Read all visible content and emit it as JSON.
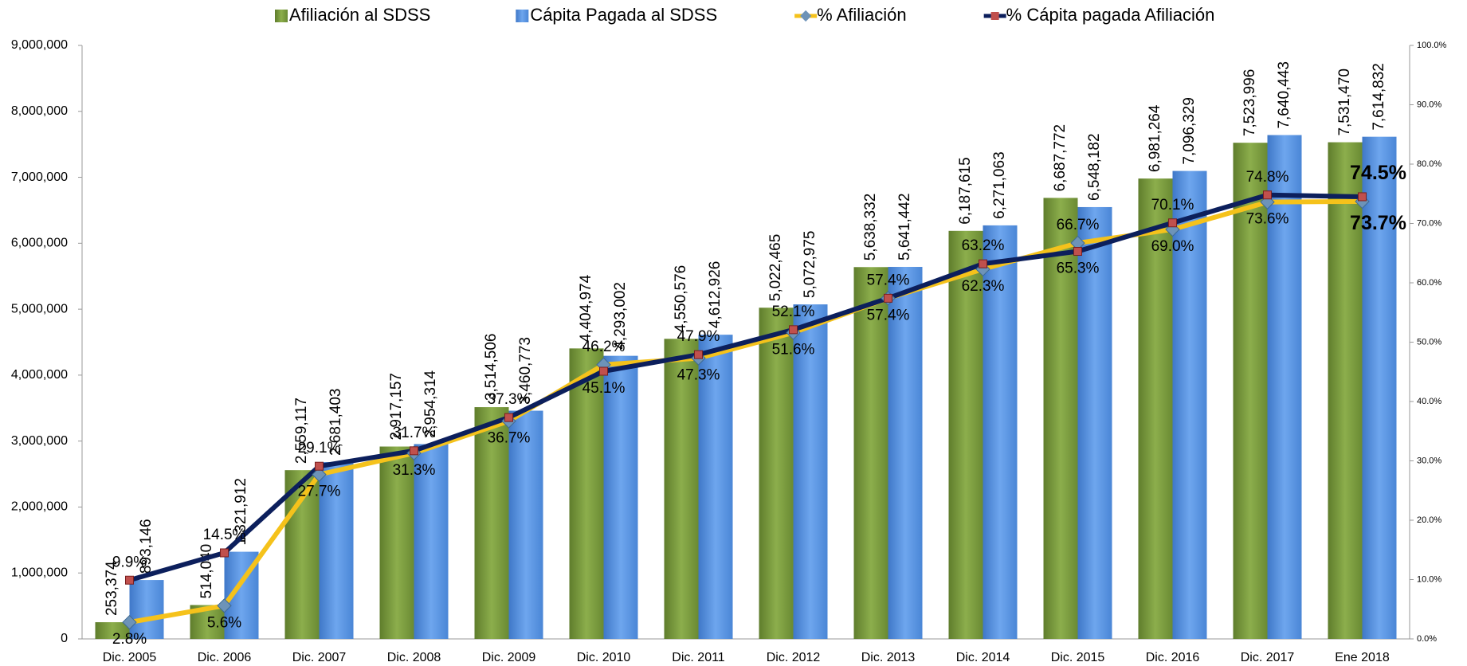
{
  "chart_data": {
    "type": "bar_line",
    "categories": [
      "Dic. 2005",
      "Dic. 2006",
      "Dic. 2007",
      "Dic. 2008",
      "Dic. 2009",
      "Dic. 2010",
      "Dic. 2011",
      "Dic. 2012",
      "Dic. 2013",
      "Dic. 2014",
      "Dic. 2015",
      "Dic. 2016",
      "Dic. 2017",
      "Ene 2018"
    ],
    "series": [
      {
        "name": "Afiliación al SDSS",
        "type": "bar",
        "color": "#7b9c3f",
        "values": [
          253374,
          514040,
          2559117,
          2917157,
          3514506,
          4404974,
          4550576,
          5022465,
          5638332,
          6187615,
          6687772,
          6981264,
          7523996,
          7531470
        ],
        "value_labels": [
          "253,374",
          "514,040",
          "2,559,117",
          "2,917,157",
          "3,514,506",
          "4,404,974",
          "4,550,576",
          "5,022,465",
          "5,638,332",
          "6,187,615",
          "6,687,772",
          "6,981,264",
          "7,523,996",
          "7,531,470"
        ]
      },
      {
        "name": "Cápita Pagada al SDSS",
        "type": "bar",
        "color": "#5b96e2",
        "values": [
          893146,
          1321912,
          2681403,
          2954314,
          3460773,
          4293002,
          4612926,
          5072975,
          5641442,
          6271063,
          6548182,
          7096329,
          7640443,
          7614832
        ],
        "value_labels": [
          "893,146",
          "1,321,912",
          "2,681,403",
          "2,954,314",
          "3,460,773",
          "4,293,002",
          "4,612,926",
          "5,072,975",
          "5,641,442",
          "6,271,063",
          "6,548,182",
          "7,096,329",
          "7,640,443",
          "7,614,832"
        ]
      },
      {
        "name": "% Afiliación",
        "type": "line",
        "axis": "y2",
        "color": "#f5c21b",
        "values": [
          2.8,
          5.6,
          27.7,
          31.3,
          36.7,
          46.2,
          47.3,
          51.6,
          57.4,
          62.3,
          66.7,
          69.0,
          73.6,
          73.7
        ],
        "value_labels": [
          "2.8%",
          "5.6%",
          "27.7%",
          "31.3%",
          "36.7%",
          "46.2%",
          "47.3%",
          "51.6%",
          "57.4%",
          "62.3%",
          "66.7%",
          "69.0%",
          "73.6%",
          "73.7%"
        ]
      },
      {
        "name": "% Cápita pagada Afiliación",
        "type": "line",
        "axis": "y2",
        "color": "#0c1f5c",
        "values": [
          9.9,
          14.5,
          29.1,
          31.7,
          37.3,
          45.1,
          47.9,
          52.1,
          57.4,
          63.2,
          65.3,
          70.1,
          74.8,
          74.5
        ],
        "value_labels": [
          "9.9%",
          "14.5%",
          "29.1%",
          "31.7%",
          "37.3%",
          "45.1%",
          "47.9%",
          "52.1%",
          "57.4%",
          "63.2%",
          "65.3%",
          "70.1%",
          "74.8%",
          "74.5%"
        ]
      }
    ],
    "ylim": [
      0,
      9000000
    ],
    "yticks": [
      0,
      {
        "value": 1000000,
        "label": "1,000,000"
      },
      {
        "value": 2000000,
        "label": "2,000,000"
      },
      {
        "value": 3000000,
        "label": "3,000,000"
      },
      {
        "value": 4000000,
        "label": "4,000,000"
      },
      {
        "value": 5000000,
        "label": "5,000,000"
      },
      {
        "value": 6000000,
        "label": "6,000,000"
      },
      {
        "value": 7000000,
        "label": "7,000,000"
      },
      {
        "value": 8000000,
        "label": "8,000,000"
      },
      {
        "value": 9000000,
        "label": "9,000,000"
      }
    ],
    "y2lim": [
      0,
      100
    ],
    "y2ticks": [
      {
        "value": 0,
        "label": "0.0%"
      },
      {
        "value": 10,
        "label": "10.0%"
      },
      {
        "value": 20,
        "label": "20.0%"
      },
      {
        "value": 30,
        "label": "30.0%"
      },
      {
        "value": 40,
        "label": "40.0%"
      },
      {
        "value": 50,
        "label": "50.0%"
      },
      {
        "value": 60,
        "label": "60.0%"
      },
      {
        "value": 70,
        "label": "70.0%"
      },
      {
        "value": 80,
        "label": "80.0%"
      },
      {
        "value": 90,
        "label": "90.0%"
      },
      {
        "value": 100,
        "label": "100.0%"
      }
    ],
    "legend": "top"
  }
}
